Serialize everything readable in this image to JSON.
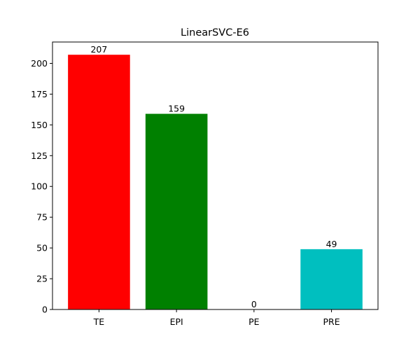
{
  "chart_data": {
    "type": "bar",
    "title": "LinearSVC-E6",
    "xlabel": "",
    "ylabel": "",
    "categories": [
      "TE",
      "EPI",
      "PE",
      "PRE"
    ],
    "values": [
      207,
      159,
      0,
      49
    ],
    "colors": [
      "#ff0000",
      "#008000",
      "#0000ff",
      "#00bfbf"
    ],
    "ylim": [
      0,
      217.35
    ],
    "yticks": [
      0,
      25,
      50,
      75,
      100,
      125,
      150,
      175,
      200
    ],
    "grid": false,
    "legend": "none"
  }
}
